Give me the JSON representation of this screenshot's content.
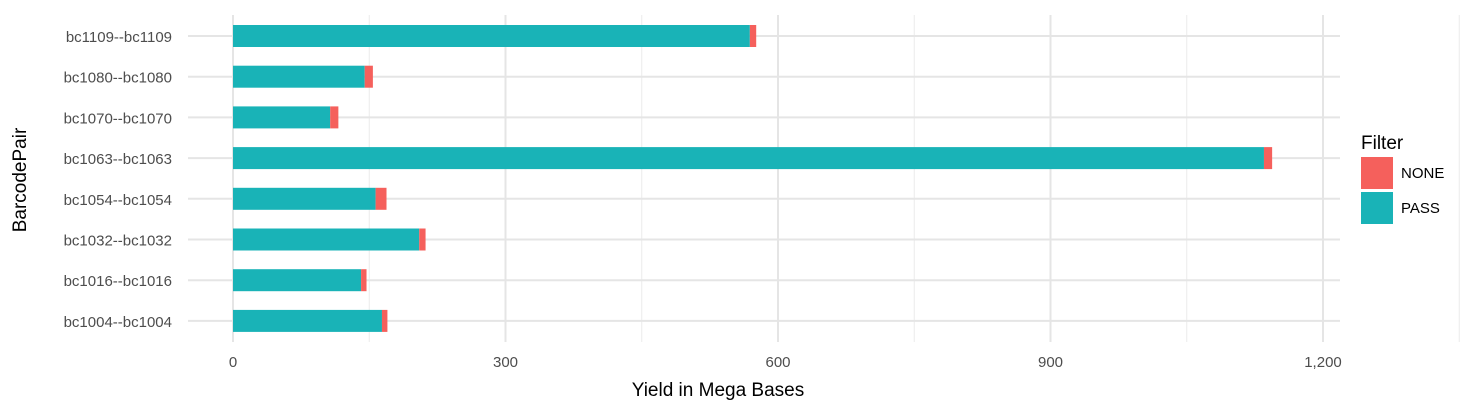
{
  "chart_data": {
    "type": "bar",
    "orientation": "horizontal",
    "stacked": true,
    "categories": [
      "bc1109--bc1109",
      "bc1080--bc1080",
      "bc1070--bc1070",
      "bc1063--bc1063",
      "bc1054--bc1054",
      "bc1032--bc1032",
      "bc1016--bc1016",
      "bc1004--bc1004"
    ],
    "series": [
      {
        "name": "PASS",
        "color": "#19B3B7",
        "values": [
          569,
          145,
          107,
          1135,
          157,
          205,
          141,
          164
        ]
      },
      {
        "name": "NONE",
        "color": "#F5605C",
        "values": [
          7,
          9,
          9,
          9,
          12,
          7,
          6,
          6
        ]
      }
    ],
    "xlabel": "Yield in Mega Bases",
    "ylabel": "BarcodePair",
    "xlim": [
      0,
      1200
    ],
    "xticks": [
      0,
      300,
      600,
      900,
      1200
    ],
    "xtick_labels": [
      "0",
      "300",
      "600",
      "900",
      "1,200"
    ],
    "grid": true,
    "legend": {
      "title": "Filter",
      "entries": [
        "NONE",
        "PASS"
      ],
      "position": "right"
    }
  }
}
